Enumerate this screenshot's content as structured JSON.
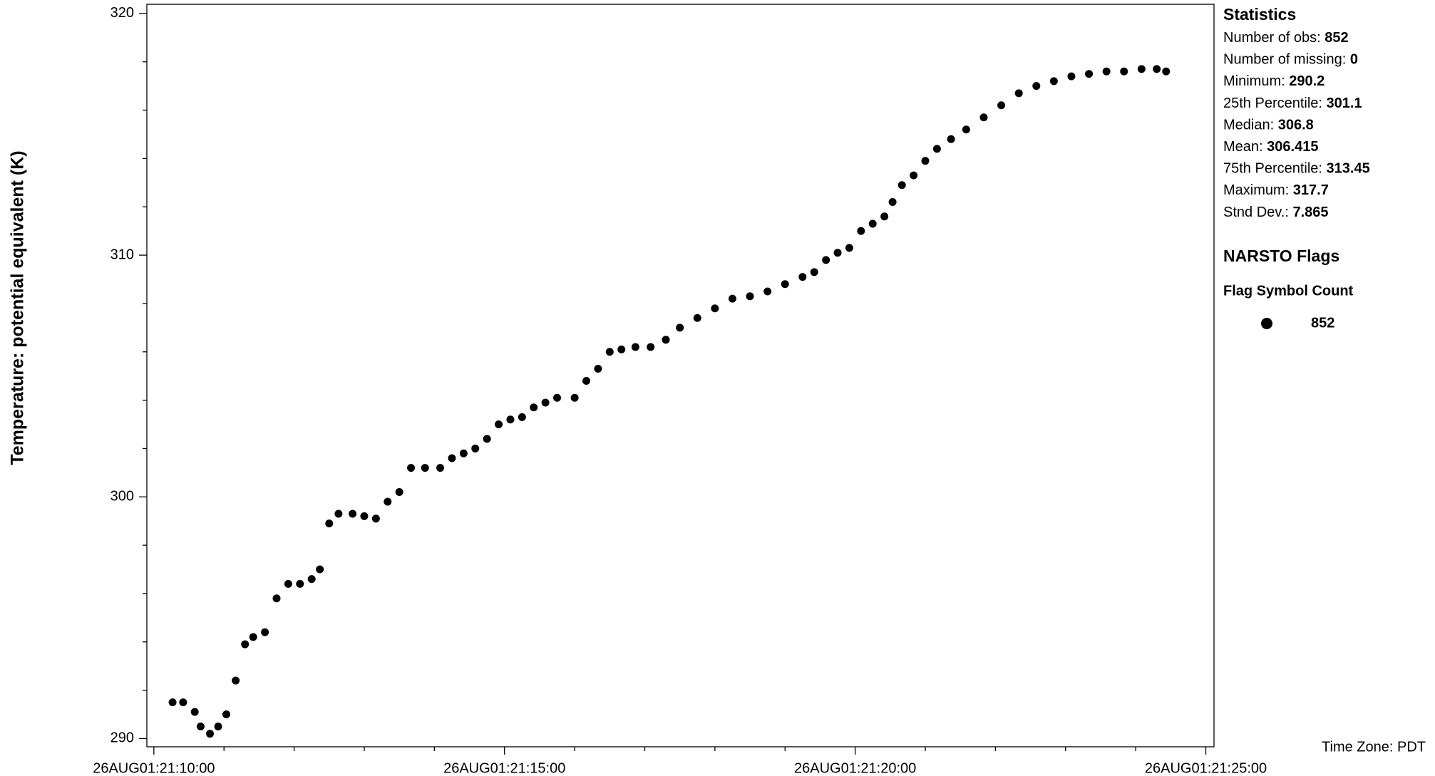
{
  "chart_data": {
    "type": "scatter",
    "y_label": "Temperature: potential equivalent (K)",
    "color": "#000000",
    "x": [
      "26AUG01:21:10:16",
      "26AUG01:21:10:25",
      "26AUG01:21:10:35",
      "26AUG01:21:10:40",
      "26AUG01:21:10:48",
      "26AUG01:21:10:55",
      "26AUG01:21:11:02",
      "26AUG01:21:11:10",
      "26AUG01:21:11:18",
      "26AUG01:21:11:25",
      "26AUG01:21:11:35",
      "26AUG01:21:11:45",
      "26AUG01:21:11:55",
      "26AUG01:21:12:05",
      "26AUG01:21:12:15",
      "26AUG01:21:12:22",
      "26AUG01:21:12:30",
      "26AUG01:21:12:38",
      "26AUG01:21:12:50",
      "26AUG01:21:13:00",
      "26AUG01:21:13:10",
      "26AUG01:21:13:20",
      "26AUG01:21:13:30",
      "26AUG01:21:13:40",
      "26AUG01:21:13:52",
      "26AUG01:21:14:05",
      "26AUG01:21:14:15",
      "26AUG01:21:14:25",
      "26AUG01:21:14:35",
      "26AUG01:21:14:45",
      "26AUG01:21:14:55",
      "26AUG01:21:15:05",
      "26AUG01:21:15:15",
      "26AUG01:21:15:25",
      "26AUG01:21:15:35",
      "26AUG01:21:15:45",
      "26AUG01:21:16:00",
      "26AUG01:21:16:10",
      "26AUG01:21:16:20",
      "26AUG01:21:16:30",
      "26AUG01:21:16:40",
      "26AUG01:21:16:52",
      "26AUG01:21:17:05",
      "26AUG01:21:17:18",
      "26AUG01:21:17:30",
      "26AUG01:21:17:45",
      "26AUG01:21:18:00",
      "26AUG01:21:18:15",
      "26AUG01:21:18:30",
      "26AUG01:21:18:45",
      "26AUG01:21:19:00",
      "26AUG01:21:19:15",
      "26AUG01:21:19:25",
      "26AUG01:21:19:35",
      "26AUG01:21:19:45",
      "26AUG01:21:19:55",
      "26AUG01:21:20:05",
      "26AUG01:21:20:15",
      "26AUG01:21:20:25",
      "26AUG01:21:20:32",
      "26AUG01:21:20:40",
      "26AUG01:21:20:50",
      "26AUG01:21:21:00",
      "26AUG01:21:21:10",
      "26AUG01:21:21:22",
      "26AUG01:21:21:35",
      "26AUG01:21:21:50",
      "26AUG01:21:22:05",
      "26AUG01:21:22:20",
      "26AUG01:21:22:35",
      "26AUG01:21:22:50",
      "26AUG01:21:23:05",
      "26AUG01:21:23:20",
      "26AUG01:21:23:35",
      "26AUG01:21:23:50",
      "26AUG01:21:24:05",
      "26AUG01:21:24:18",
      "26AUG01:21:24:26"
    ],
    "values": [
      291.5,
      291.5,
      291.1,
      290.5,
      290.2,
      290.5,
      291.0,
      292.4,
      293.9,
      294.2,
      294.4,
      295.8,
      296.4,
      296.4,
      296.6,
      297.0,
      298.9,
      299.3,
      299.3,
      299.2,
      299.1,
      299.8,
      300.2,
      301.2,
      301.2,
      301.2,
      301.6,
      301.8,
      302.0,
      302.4,
      303.0,
      303.2,
      303.3,
      303.7,
      303.9,
      304.1,
      304.1,
      304.8,
      305.3,
      306.0,
      306.1,
      306.2,
      306.2,
      306.5,
      307.0,
      307.4,
      307.8,
      308.2,
      308.3,
      308.5,
      308.8,
      309.1,
      309.3,
      309.8,
      310.1,
      310.3,
      311.0,
      311.3,
      311.6,
      312.2,
      312.9,
      313.3,
      313.9,
      314.4,
      314.8,
      315.2,
      315.7,
      316.2,
      316.7,
      317.0,
      317.2,
      317.4,
      317.5,
      317.6,
      317.6,
      317.7,
      317.7,
      317.6
    ],
    "xlim": [
      "26AUG01:21:09:54",
      "26AUG01:21:25:07"
    ],
    "xticks": [
      "26AUG01:21:10:00",
      "26AUG01:21:15:00",
      "26AUG01:21:20:00",
      "26AUG01:21:25:00"
    ],
    "ylim": [
      289.66,
      320.38
    ],
    "yticks": [
      290,
      300,
      310,
      320
    ],
    "statistics": {
      "title": "Statistics",
      "items": [
        {
          "label": "Number of obs:",
          "value": 852
        },
        {
          "label": "Number of missing:",
          "value": 0
        },
        {
          "label": "Minimum:",
          "value": 290.2
        },
        {
          "label": "25th Percentile:",
          "value": 301.1
        },
        {
          "label": "Median:",
          "value": 306.8
        },
        {
          "label": "Mean:",
          "value": 306.415
        },
        {
          "label": "75th Percentile:",
          "value": 313.45
        },
        {
          "label": "Maximum:",
          "value": 317.7
        },
        {
          "label": "Stnd Dev.:",
          "value": 7.865
        }
      ]
    },
    "flags": {
      "title": "NARSTO Flags",
      "header": "Flag Symbol Count",
      "count": 852
    },
    "time_zone": "Time Zone: PDT"
  }
}
